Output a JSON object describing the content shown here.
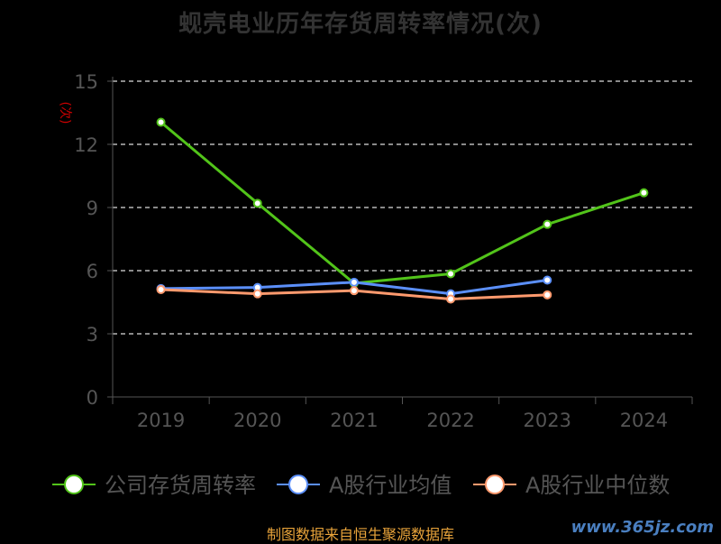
{
  "chart_data": {
    "type": "line",
    "title": "蚬壳电业历年存货周转率情况(次)",
    "ylabel": "(次)",
    "xlabel": "",
    "categories": [
      "2019",
      "2020",
      "2021",
      "2022",
      "2023",
      "2024"
    ],
    "ylim": [
      0,
      15
    ],
    "yticks": [
      0,
      3,
      6,
      9,
      12,
      15
    ],
    "grid": true,
    "legend_position": "bottom",
    "series": [
      {
        "name": "公司存货周转率",
        "color": "#52c41a",
        "values": [
          13.05,
          9.2,
          5.4,
          5.85,
          8.2,
          9.7
        ]
      },
      {
        "name": "A股行业均值",
        "color": "#5b8ff9",
        "values": [
          5.15,
          5.2,
          5.45,
          4.9,
          5.55,
          null
        ]
      },
      {
        "name": "A股行业中位数",
        "color": "#ff9a6e",
        "values": [
          5.1,
          4.9,
          5.05,
          4.65,
          4.85,
          null
        ]
      }
    ]
  },
  "footer": {
    "source": "制图数据来自恒生聚源数据库",
    "watermark": "www.365jz.com"
  }
}
